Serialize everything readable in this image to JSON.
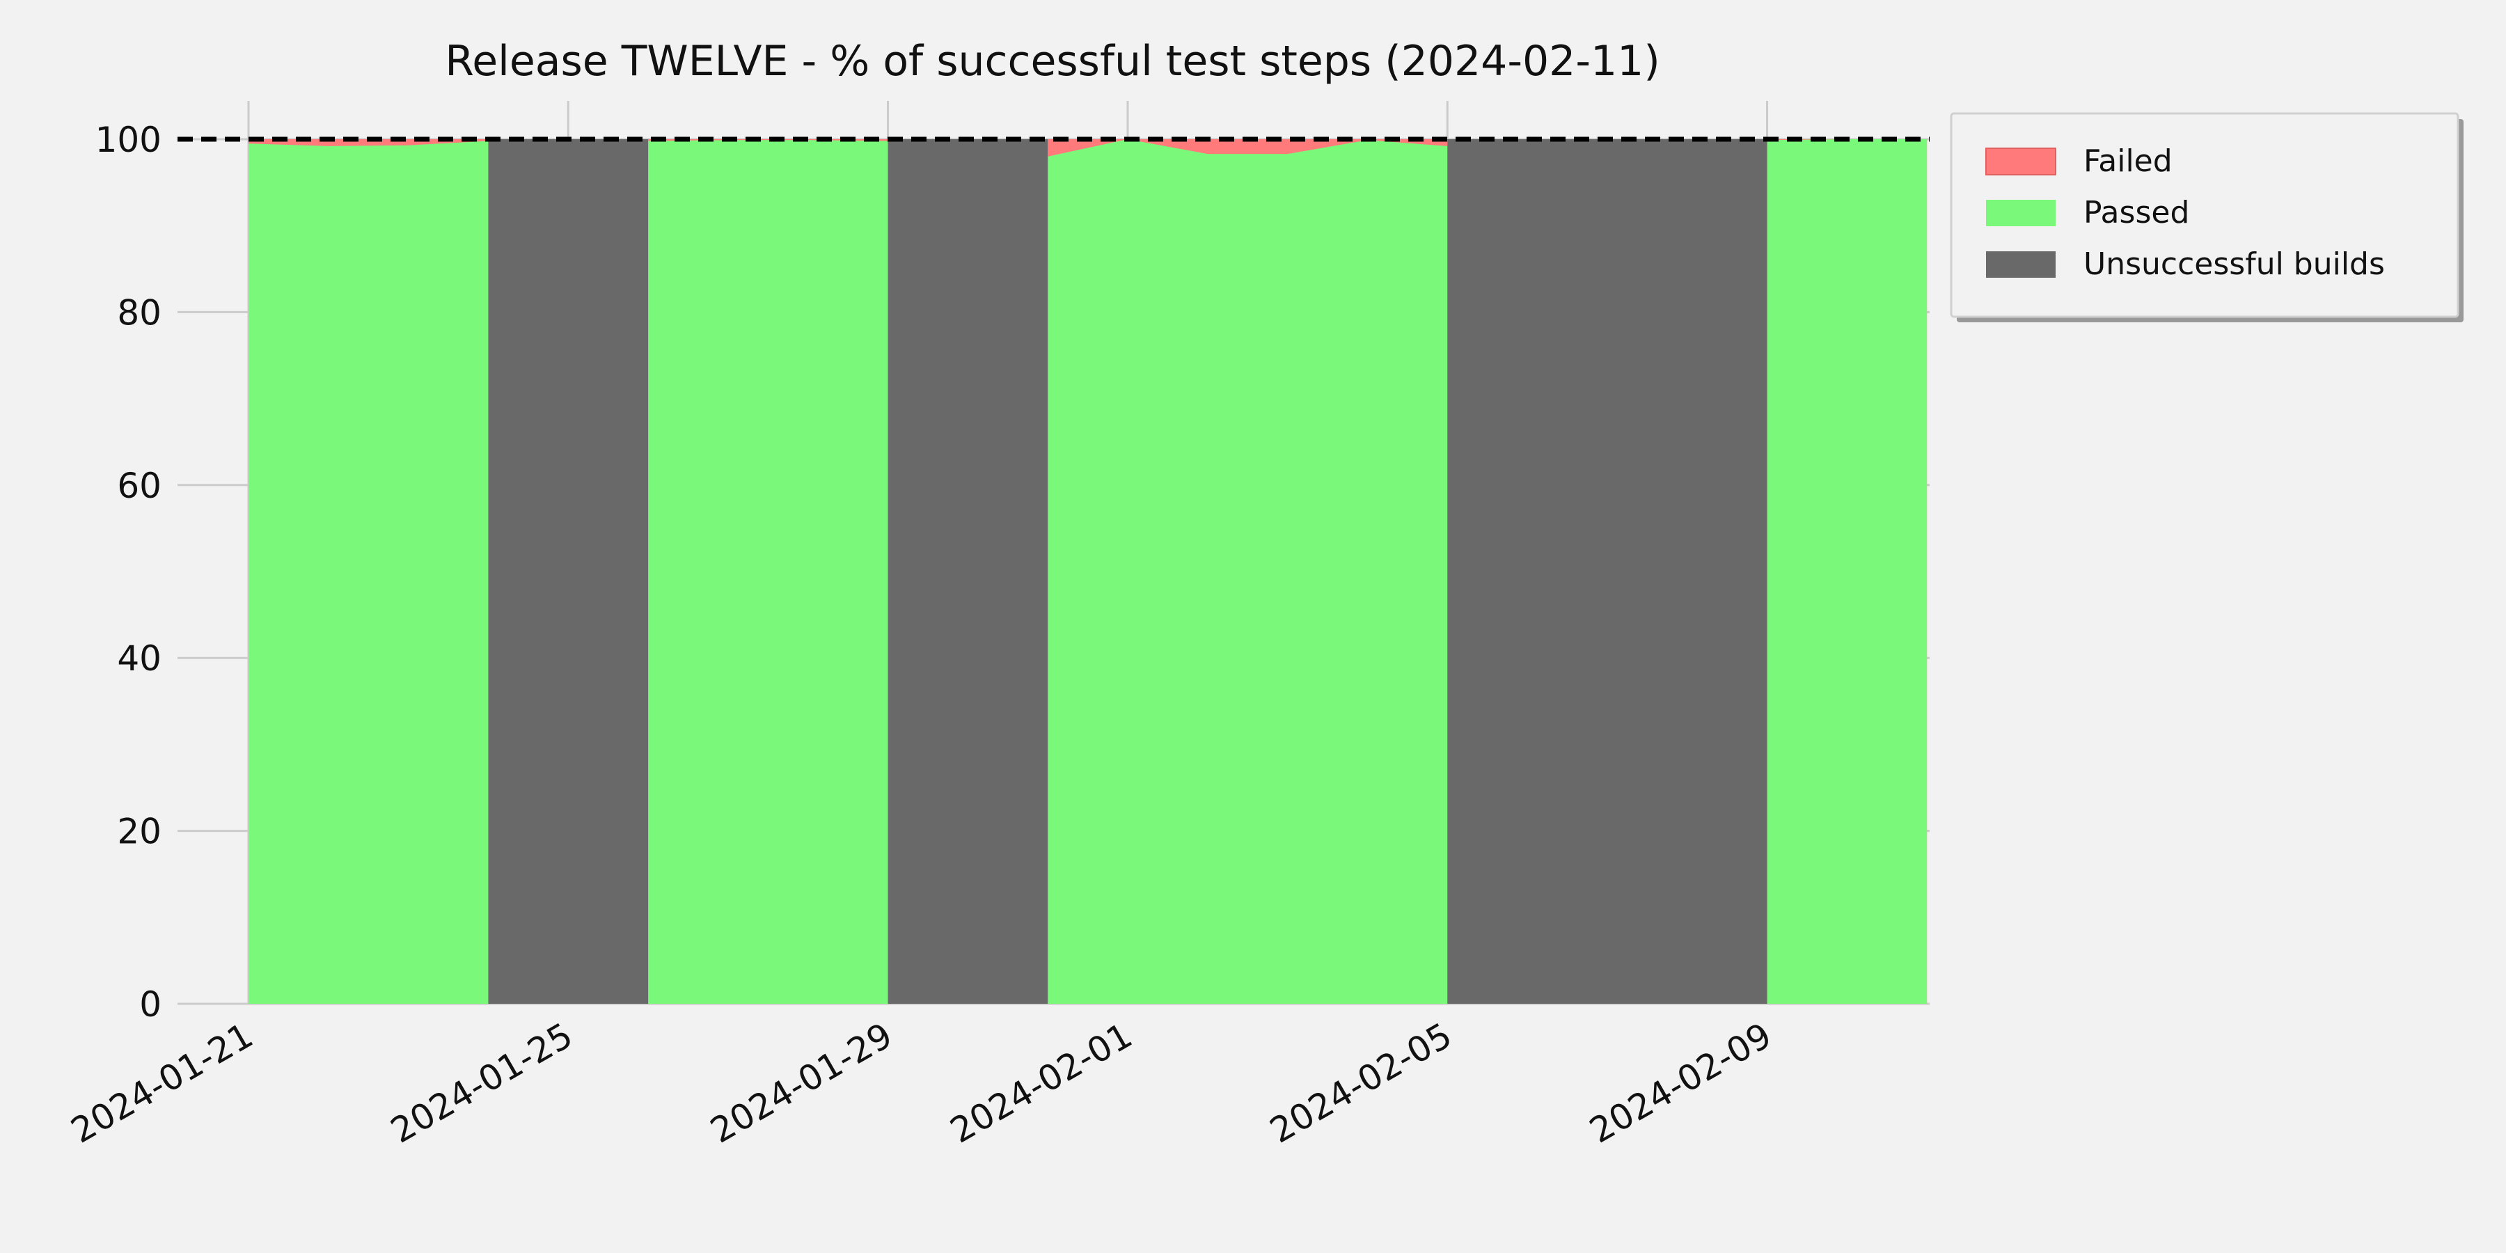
{
  "chart_data": {
    "type": "area",
    "title": "Release TWELVE - % of successful test steps (2024-02-11)",
    "xlabel": "",
    "ylabel": "",
    "x_ticks": [
      "2024-01-21",
      "2024-01-25",
      "2024-01-29",
      "2024-02-01",
      "2024-02-05",
      "2024-02-09"
    ],
    "xlim": [
      "2024-01-21",
      "2024-02-12"
    ],
    "ylim": [
      0,
      100
    ],
    "y_ticks": [
      0,
      20,
      40,
      60,
      80,
      100
    ],
    "grid": true,
    "legend_position": "outside-top-right",
    "reference_line": {
      "y": 100,
      "style": "dashed",
      "color": "#000000"
    },
    "colors": {
      "failed": "#ff7b7b",
      "passed": "#79f879",
      "unsuccessful": "#696969"
    },
    "series": [
      {
        "name": "Failed",
        "segments": [
          {
            "x": [
              "2024-01-21",
              "2024-01-22",
              "2024-01-23",
              "2024-01-24"
            ],
            "passed": [
              99.5,
              99.2,
              99.3,
              99.8
            ]
          },
          {
            "x": [
              "2024-01-26",
              "2024-01-27",
              "2024-01-28",
              "2024-01-29"
            ],
            "passed": [
              99.8,
              99.9,
              99.9,
              99.8
            ]
          },
          {
            "x": [
              "2024-01-31",
              "2024-02-01",
              "2024-02-02",
              "2024-02-03",
              "2024-02-04",
              "2024-02-05"
            ],
            "passed": [
              98.0,
              100.0,
              98.3,
              98.3,
              99.9,
              99.2
            ]
          },
          {
            "x": [
              "2024-02-09",
              "2024-02-10",
              "2024-02-11"
            ],
            "passed": [
              99.9,
              100.0,
              100.0
            ]
          }
        ]
      },
      {
        "name": "Passed"
      },
      {
        "name": "Unsuccessful builds",
        "ranges": [
          [
            "2024-01-24",
            "2024-01-26"
          ],
          [
            "2024-01-29",
            "2024-01-31"
          ],
          [
            "2024-02-05",
            "2024-02-09"
          ]
        ]
      }
    ],
    "legend": [
      "Failed",
      "Passed",
      "Unsuccessful builds"
    ]
  }
}
